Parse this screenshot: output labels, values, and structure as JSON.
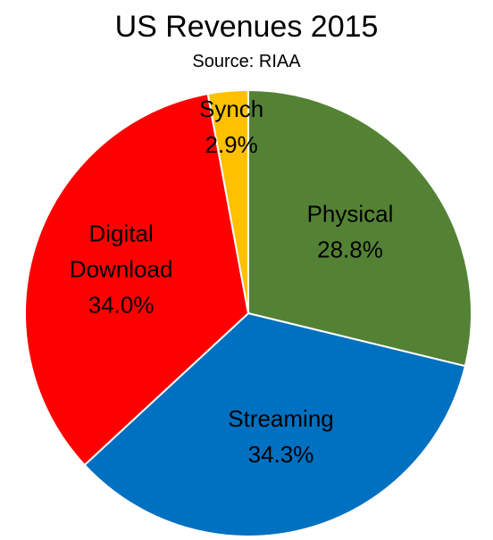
{
  "chart_data": {
    "type": "pie",
    "title": "US Revenues 2015",
    "subtitle": "Source: RIAA",
    "slices": [
      {
        "label": "Physical",
        "value": 28.8,
        "value_label": "28.8%",
        "color": "#548235"
      },
      {
        "label": "Streaming",
        "value": 34.3,
        "value_label": "34.3%",
        "color": "#0070C0"
      },
      {
        "label": "Digital Download",
        "value": 34.0,
        "value_label": "34.0%",
        "color": "#FF0000"
      },
      {
        "label": "Synch",
        "value": 2.9,
        "value_label": "2.9%",
        "color": "#FFC000"
      }
    ],
    "start_angle": "12 o'clock",
    "direction": "clockwise",
    "legend": "none",
    "slice_border_color": "#ffffff"
  }
}
